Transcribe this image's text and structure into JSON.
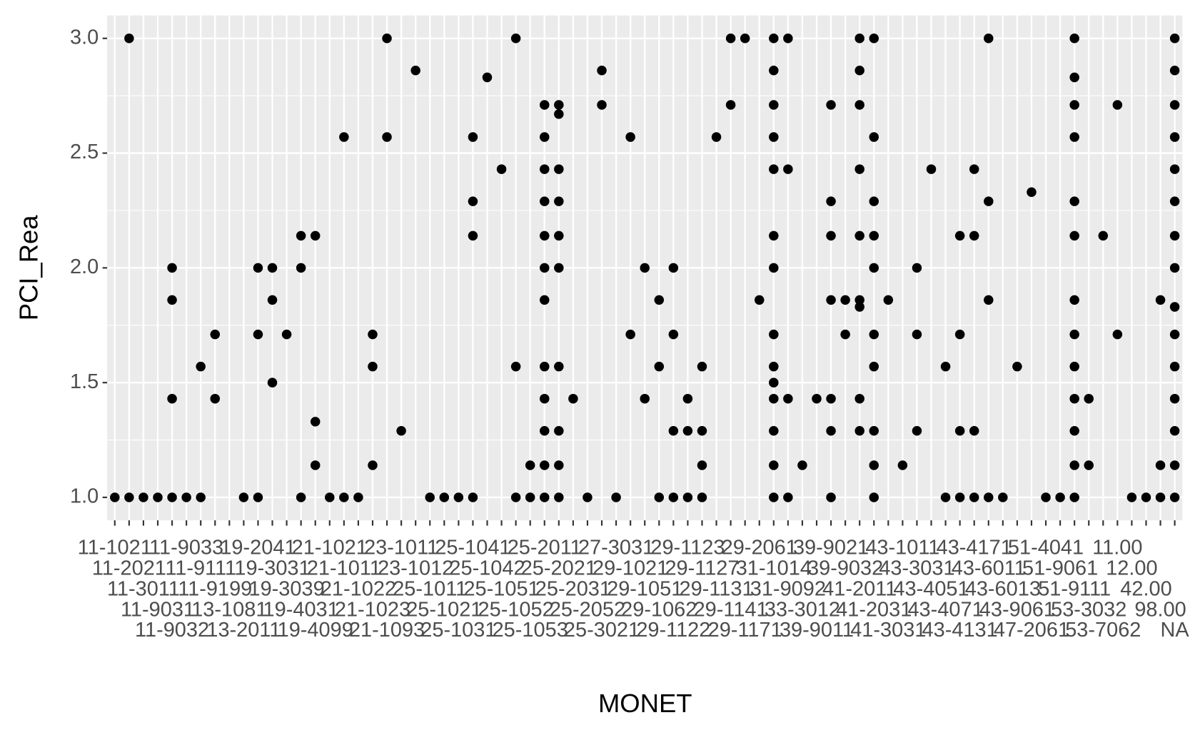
{
  "chart_data": {
    "type": "scatter",
    "x_label": "MONET",
    "y_label": "PCI_Rea",
    "categories": [
      "11-1021",
      "11-2021",
      "11-3011",
      "11-9031",
      "11-9032",
      "11-9033",
      "11-9111",
      "11-9199",
      "13-1081",
      "13-2011",
      "19-2041",
      "19-3031",
      "19-3039",
      "19-4031",
      "19-4099",
      "21-1021",
      "21-1011",
      "21-1022",
      "21-1023",
      "21-1093",
      "23-1011",
      "23-1012",
      "25-1011",
      "25-1021",
      "25-1031",
      "25-1041",
      "25-1042",
      "25-1051",
      "25-1052",
      "25-1053",
      "25-2011",
      "25-2021",
      "25-2031",
      "25-2052",
      "25-3021",
      "27-3031",
      "29-1021",
      "29-1051",
      "29-1062",
      "29-1122",
      "29-1123",
      "29-1127",
      "29-1131",
      "29-1141",
      "29-1171",
      "29-2061",
      "31-1014",
      "31-9092",
      "33-3012",
      "39-9011",
      "39-9021",
      "39-9032",
      "41-2011",
      "41-2031",
      "41-3031",
      "43-1011",
      "43-3031",
      "43-4051",
      "43-4071",
      "43-4131",
      "43-4171",
      "43-6011",
      "43-6013",
      "43-9061",
      "47-2061",
      "51-4041",
      "51-9061",
      "51-9111",
      "53-3032",
      "53-7062",
      "11.00",
      "12.00",
      "42.00",
      "98.00",
      "NA"
    ],
    "series": [
      {
        "color": "#000000",
        "values": [
          [
            1.0
          ],
          [
            3.0,
            1.0
          ],
          [
            1.0
          ],
          [
            1.0
          ],
          [
            2.0,
            1.86,
            1.43,
            1.0
          ],
          [
            1.0
          ],
          [
            1.57,
            1.0
          ],
          [
            1.71,
            1.43
          ],
          [],
          [
            1.0
          ],
          [
            2.0,
            1.71,
            1.0
          ],
          [
            2.0,
            1.86,
            1.5
          ],
          [
            1.71
          ],
          [
            2.14,
            2.0,
            1.0
          ],
          [
            2.14,
            1.33,
            1.14
          ],
          [
            1.0
          ],
          [
            2.57,
            1.0
          ],
          [
            1.0
          ],
          [
            1.71,
            1.57,
            1.14
          ],
          [
            3.0,
            2.57
          ],
          [
            1.29
          ],
          [
            2.86
          ],
          [
            1.0
          ],
          [
            1.0
          ],
          [
            1.0
          ],
          [
            2.57,
            2.29,
            2.14,
            1.0
          ],
          [
            2.83
          ],
          [
            2.43
          ],
          [
            3.0,
            1.57,
            1.0
          ],
          [
            1.14,
            1.0
          ],
          [
            2.71,
            2.57,
            2.43,
            2.29,
            2.14,
            2.0,
            1.86,
            1.57,
            1.43,
            1.29,
            1.14,
            1.0
          ],
          [
            2.71,
            2.67,
            2.43,
            2.29,
            2.14,
            2.0,
            1.57,
            1.29,
            1.14,
            1.0
          ],
          [
            1.43
          ],
          [
            1.0
          ],
          [
            2.86,
            2.71
          ],
          [
            1.0
          ],
          [
            2.57,
            1.71
          ],
          [
            2.0,
            1.43
          ],
          [
            1.86,
            1.57,
            1.0
          ],
          [
            2.0,
            1.71,
            1.29,
            1.0
          ],
          [
            1.43,
            1.29,
            1.0
          ],
          [
            1.57,
            1.29,
            1.14,
            1.0
          ],
          [
            2.57
          ],
          [
            3.0,
            2.71
          ],
          [
            3.0
          ],
          [
            1.86
          ],
          [
            3.0,
            2.86,
            2.71,
            2.57,
            2.43,
            2.14,
            2.0,
            1.71,
            1.57,
            1.5,
            1.43,
            1.29,
            1.14,
            1.0
          ],
          [
            3.0,
            2.43,
            1.43,
            1.0
          ],
          [
            1.14
          ],
          [
            1.43
          ],
          [
            2.71,
            2.29,
            2.14,
            1.86,
            1.43,
            1.29,
            1.0
          ],
          [
            1.86,
            1.71
          ],
          [
            3.0,
            2.86,
            2.71,
            2.43,
            2.14,
            1.86,
            1.83,
            1.43,
            1.29
          ],
          [
            3.0,
            2.57,
            2.29,
            2.14,
            2.0,
            1.71,
            1.57,
            1.29,
            1.14,
            1.0
          ],
          [
            1.86
          ],
          [
            1.14
          ],
          [
            2.0,
            1.71,
            1.29
          ],
          [
            2.43
          ],
          [
            1.57,
            1.0
          ],
          [
            2.14,
            1.71,
            1.29,
            1.0
          ],
          [
            2.43,
            2.14,
            1.29,
            1.0
          ],
          [
            3.0,
            2.29,
            1.86,
            1.0
          ],
          [
            1.0
          ],
          [
            1.57
          ],
          [
            2.33
          ],
          [
            1.0
          ],
          [
            1.0
          ],
          [
            3.0,
            2.83,
            2.71,
            2.57,
            2.29,
            2.14,
            1.86,
            1.71,
            1.57,
            1.43,
            1.29,
            1.14,
            1.0
          ],
          [
            1.43,
            1.14
          ],
          [
            2.14
          ],
          [
            2.71,
            1.71
          ],
          [
            1.0
          ],
          [
            1.0
          ],
          [
            1.86,
            1.14,
            1.0
          ],
          [
            3.0,
            2.86,
            2.71,
            2.57,
            2.43,
            2.29,
            2.14,
            2.0,
            1.83,
            1.71,
            1.57,
            1.43,
            1.29,
            1.14,
            1.0
          ]
        ]
      }
    ],
    "ylim": [
      0.9,
      3.1
    ],
    "yticks": [
      {
        "value": 1,
        "label": "1.0"
      },
      1.5,
      {
        "value": 2,
        "label": "2.0"
      },
      2.5,
      {
        "value": 3,
        "label": "3.0"
      }
    ],
    "grid": true,
    "panel_color": "#EBEBEB"
  }
}
